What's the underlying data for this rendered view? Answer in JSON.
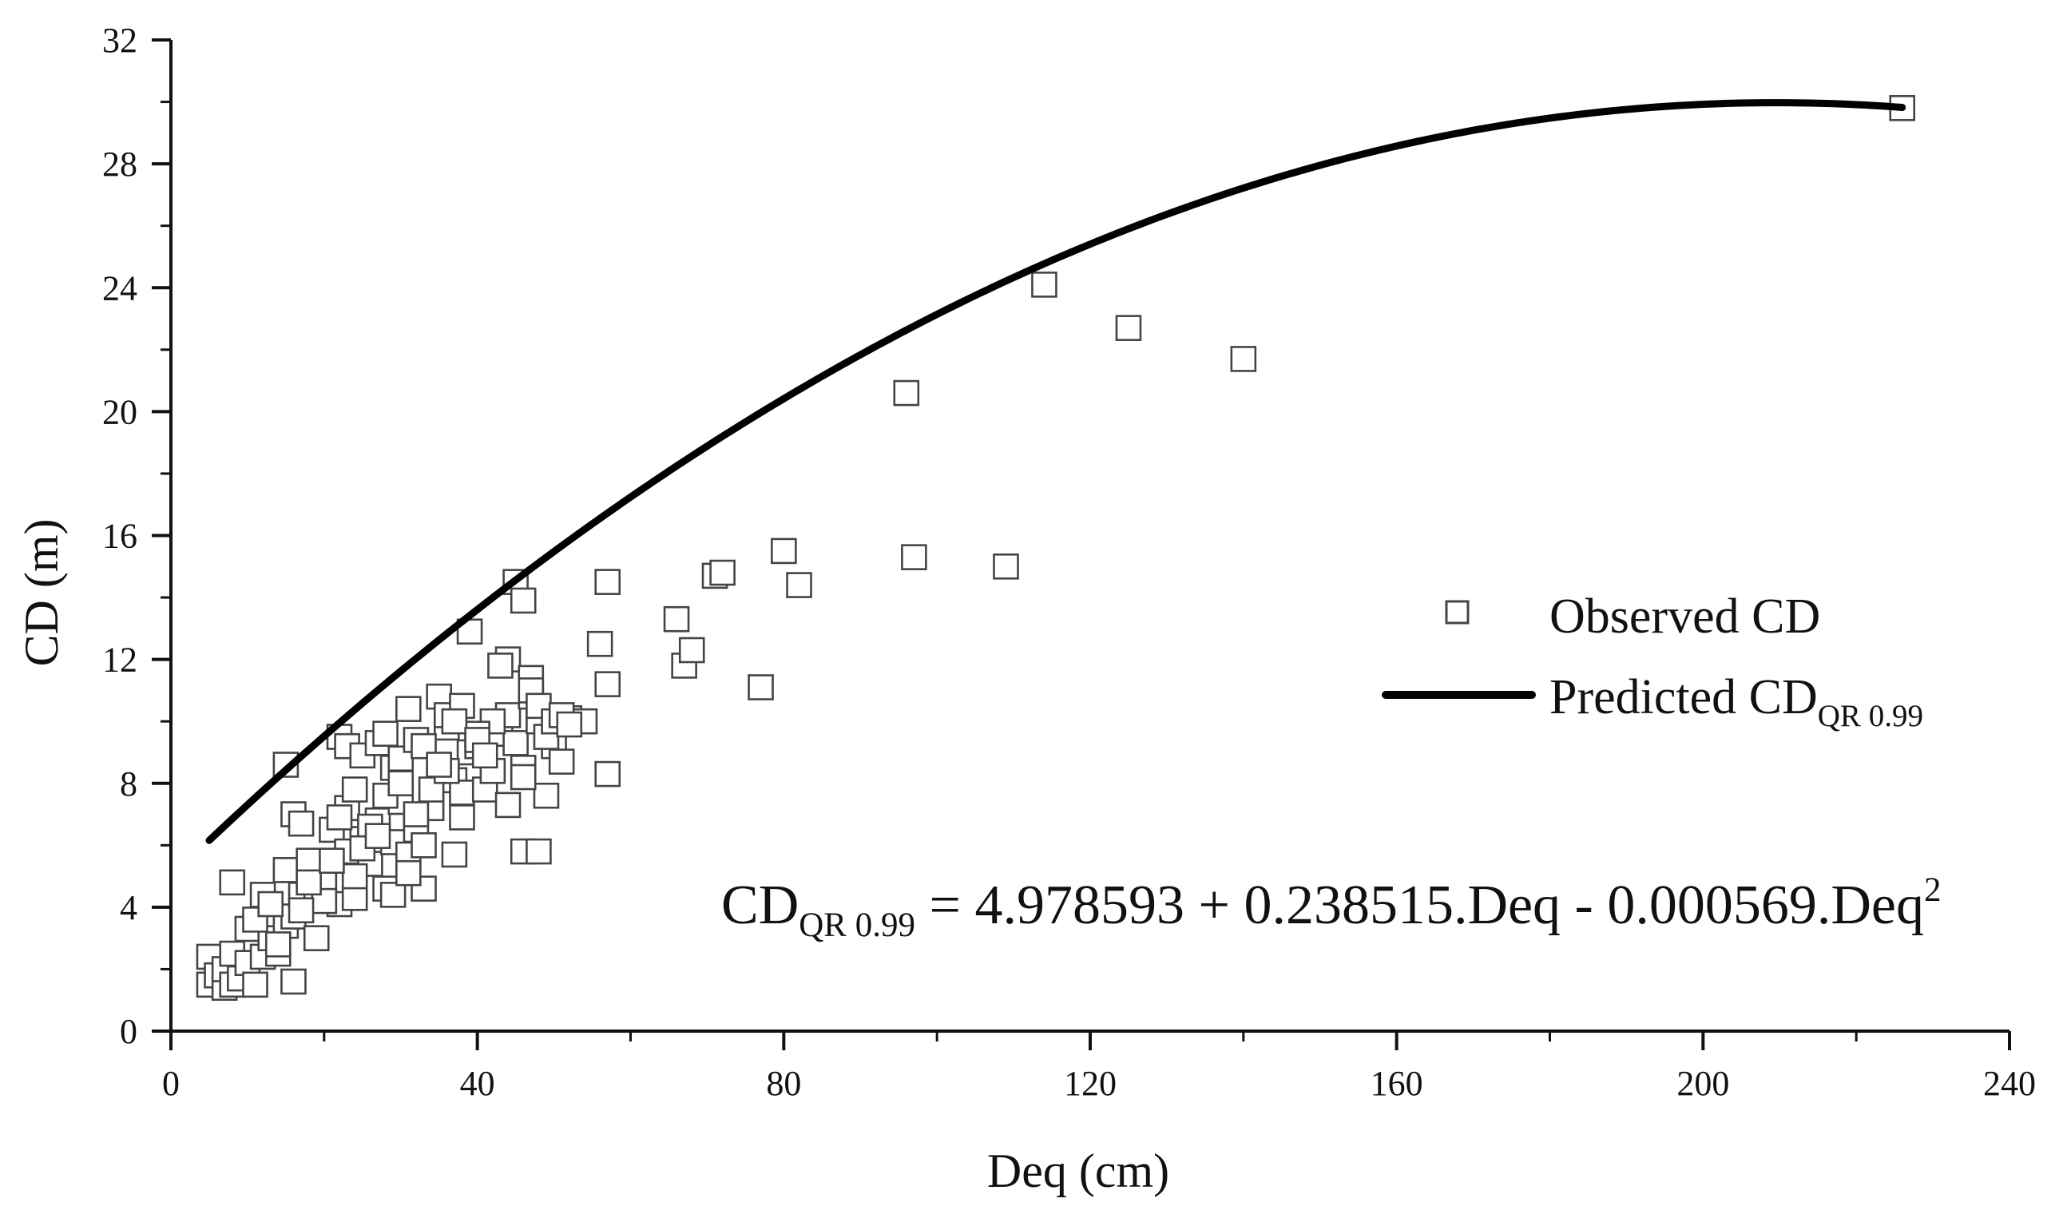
{
  "chart_data": {
    "type": "scatter",
    "xlabel": "Deq (cm)",
    "ylabel": "CD (m)",
    "xlim": [
      0,
      240
    ],
    "ylim": [
      0,
      32
    ],
    "xticks": [
      "0",
      "40",
      "80",
      "120",
      "160",
      "200",
      "240"
    ],
    "yticks": [
      "0",
      "4",
      "8",
      "12",
      "16",
      "20",
      "24",
      "28",
      "32"
    ],
    "x_tick_values": [
      0,
      40,
      80,
      120,
      160,
      200,
      240
    ],
    "y_tick_values": [
      0,
      4,
      8,
      12,
      16,
      20,
      24,
      28,
      32
    ],
    "x_minor_step": 20,
    "y_minor_step": 2,
    "grid": false,
    "legend_position": "right-middle",
    "legend": {
      "observed_label": "Observed CD",
      "predicted_label_main": "Predicted CD",
      "predicted_label_sub": "QR 0.99"
    },
    "equation": {
      "lhs_main": "CD",
      "lhs_sub": "QR 0.99",
      "rhs": " = 4.978593 + 0.238515.Deq - 0.000569.Deq",
      "power": "2"
    },
    "series": [
      {
        "name": "Observed CD",
        "type": "scatter",
        "marker": "square-open",
        "points": [
          [
            5,
            2.4
          ],
          [
            5,
            1.5
          ],
          [
            6,
            1.8
          ],
          [
            7,
            1.4
          ],
          [
            7,
            2.0
          ],
          [
            8,
            2.5
          ],
          [
            8,
            1.5
          ],
          [
            9,
            1.7
          ],
          [
            10,
            2.2
          ],
          [
            10,
            3.3
          ],
          [
            11,
            1.5
          ],
          [
            12,
            2.4
          ],
          [
            12,
            4.4
          ],
          [
            13,
            3.0
          ],
          [
            14,
            2.5
          ],
          [
            15,
            3.4
          ],
          [
            15,
            5.2
          ],
          [
            16,
            3.7
          ],
          [
            16,
            1.6
          ],
          [
            17,
            4.4
          ],
          [
            18,
            5.5
          ],
          [
            19,
            3.0
          ],
          [
            19,
            4.6
          ],
          [
            20,
            4.8
          ],
          [
            21,
            6.5
          ],
          [
            22,
            4.1
          ],
          [
            23,
            5.8
          ],
          [
            23,
            7.2
          ],
          [
            24,
            4.3
          ],
          [
            25,
            6.2
          ],
          [
            26,
            5.4
          ],
          [
            27,
            6.8
          ],
          [
            28,
            4.6
          ],
          [
            29,
            6.1
          ],
          [
            30,
            7.4
          ],
          [
            31,
            5.7
          ],
          [
            32,
            6.5
          ],
          [
            33,
            4.6
          ],
          [
            34,
            7.2
          ],
          [
            35,
            8.2
          ],
          [
            36,
            9.8
          ],
          [
            37,
            8.1
          ],
          [
            37,
            5.7
          ],
          [
            38,
            7.7
          ],
          [
            39,
            9.0
          ],
          [
            40,
            9.2
          ],
          [
            41,
            7.8
          ],
          [
            42,
            8.4
          ],
          [
            43,
            9.6
          ],
          [
            44,
            10.2
          ],
          [
            45,
            9.3
          ],
          [
            46,
            8.5
          ],
          [
            46,
            5.8
          ],
          [
            47,
            10.8
          ],
          [
            48,
            10.0
          ],
          [
            49,
            7.6
          ],
          [
            50,
            9.2
          ],
          [
            51,
            8.7
          ],
          [
            52,
            10.1
          ],
          [
            54,
            10.0
          ],
          [
            15,
            8.6
          ],
          [
            16,
            7.0
          ],
          [
            17,
            6.7
          ],
          [
            22,
            9.5
          ],
          [
            23,
            9.2
          ],
          [
            25,
            8.9
          ],
          [
            27,
            9.3
          ],
          [
            28,
            9.6
          ],
          [
            29,
            8.5
          ],
          [
            30,
            8.8
          ],
          [
            31,
            10.4
          ],
          [
            32,
            9.4
          ],
          [
            33,
            9.2
          ],
          [
            35,
            10.8
          ],
          [
            36,
            10.2
          ],
          [
            38,
            10.5
          ],
          [
            39,
            12.9
          ],
          [
            44,
            12.0
          ],
          [
            45,
            14.5
          ],
          [
            46,
            13.9
          ],
          [
            47,
            11.4
          ],
          [
            47,
            11.0
          ],
          [
            48,
            10.5
          ],
          [
            48,
            5.8
          ],
          [
            49,
            9.5
          ],
          [
            50,
            10.0
          ],
          [
            51,
            10.2
          ],
          [
            52,
            9.9
          ],
          [
            20,
            4.2
          ],
          [
            24,
            5.0
          ],
          [
            26,
            6.6
          ],
          [
            28,
            7.6
          ],
          [
            30,
            8.0
          ],
          [
            32,
            7.0
          ],
          [
            34,
            7.8
          ],
          [
            36,
            8.4
          ],
          [
            42,
            10.0
          ],
          [
            44,
            7.3
          ],
          [
            46,
            8.2
          ],
          [
            40,
            9.6
          ],
          [
            8,
            4.8
          ],
          [
            11,
            3.6
          ],
          [
            13,
            4.1
          ],
          [
            14,
            2.8
          ],
          [
            17,
            3.9
          ],
          [
            18,
            4.8
          ],
          [
            21,
            5.5
          ],
          [
            22,
            6.9
          ],
          [
            24,
            7.8
          ],
          [
            25,
            5.9
          ],
          [
            27,
            6.3
          ],
          [
            29,
            4.4
          ],
          [
            31,
            5.1
          ],
          [
            33,
            6.0
          ],
          [
            35,
            8.6
          ],
          [
            37,
            10.0
          ],
          [
            38,
            6.9
          ],
          [
            40,
            9.4
          ],
          [
            41,
            8.9
          ],
          [
            43,
            11.8
          ],
          [
            56,
            12.5
          ],
          [
            57,
            11.2
          ],
          [
            57,
            8.3
          ],
          [
            57,
            14.5
          ],
          [
            66,
            13.3
          ],
          [
            67,
            11.8
          ],
          [
            68,
            12.3
          ],
          [
            71,
            14.7
          ],
          [
            72,
            14.8
          ],
          [
            77,
            11.1
          ],
          [
            80,
            15.5
          ],
          [
            82,
            14.4
          ],
          [
            96,
            20.6
          ],
          [
            97,
            15.3
          ],
          [
            109,
            15.0
          ],
          [
            114,
            24.1
          ],
          [
            125,
            22.7
          ],
          [
            140,
            21.7
          ],
          [
            226,
            29.8
          ]
        ]
      },
      {
        "name": "Predicted CD QR 0.99",
        "type": "line",
        "formula": {
          "intercept": 4.978593,
          "linear": 0.238515,
          "quadratic": -0.000569
        },
        "x_range": [
          5,
          226
        ]
      }
    ],
    "colors": {
      "axis": "#111111",
      "text": "#111111",
      "marker_stroke": "#444444",
      "marker_fill": "#ffffff",
      "line": "#000000",
      "background": "#ffffff"
    }
  }
}
